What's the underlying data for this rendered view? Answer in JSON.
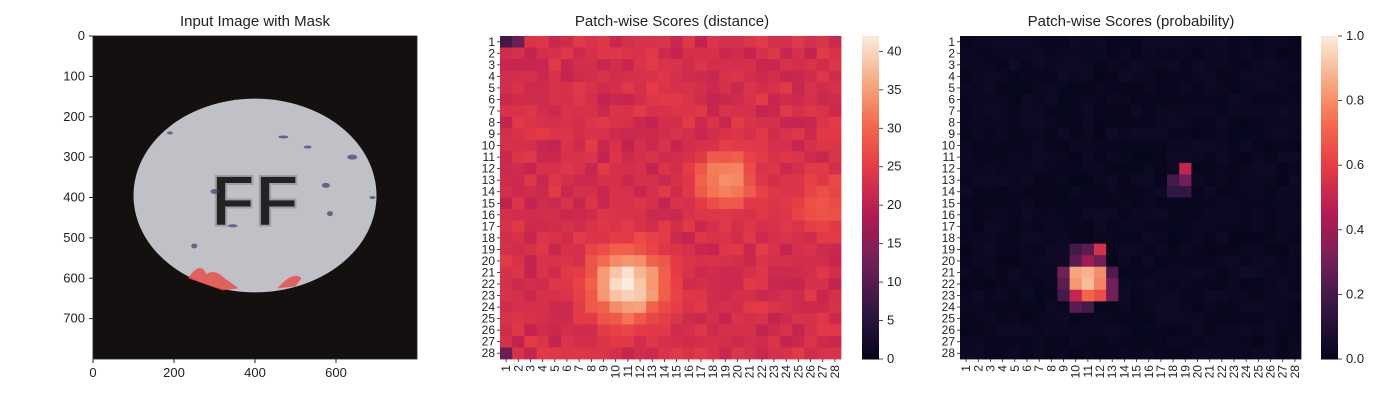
{
  "chart_data": [
    {
      "type": "image",
      "title": "Input Image with Mask",
      "xlim": [
        0,
        800
      ],
      "ylim": [
        800,
        0
      ],
      "xticks": [
        0,
        200,
        400,
        600
      ],
      "yticks": [
        0,
        100,
        200,
        300,
        400,
        500,
        600,
        700
      ],
      "image": {
        "background": "#151010",
        "object": "pill",
        "embossed_text": "FF",
        "object_color": "#bfc1c6",
        "mask_color": "#e8504a",
        "mask_regions_center_x": [
          265,
          310,
          405,
          460,
          510
        ]
      }
    },
    {
      "type": "heatmap",
      "title": "Patch-wise Scores (distance)",
      "rows": [
        "1",
        "2",
        "3",
        "4",
        "5",
        "6",
        "7",
        "8",
        "9",
        "10",
        "11",
        "12",
        "13",
        "14",
        "15",
        "16",
        "17",
        "18",
        "19",
        "20",
        "21",
        "22",
        "23",
        "24",
        "25",
        "26",
        "27",
        "28"
      ],
      "cols": [
        "1",
        "2",
        "3",
        "4",
        "5",
        "6",
        "7",
        "8",
        "9",
        "10",
        "11",
        "12",
        "13",
        "14",
        "15",
        "16",
        "17",
        "18",
        "19",
        "20",
        "21",
        "22",
        "23",
        "24",
        "25",
        "26",
        "27",
        "28"
      ],
      "colormap": "rocket",
      "vmin": 0,
      "vmax": 42,
      "colorbar_ticks": [
        0,
        5,
        10,
        15,
        20,
        25,
        30,
        35,
        40
      ],
      "baseline": 22,
      "hotspots": [
        {
          "row": 22,
          "col": 11,
          "peak": 42,
          "spread": 2.2
        },
        {
          "row": 13,
          "col": 19,
          "peak": 35,
          "spread": 1.8
        },
        {
          "row": 15,
          "col": 27,
          "peak": 28,
          "spread": 2.0
        }
      ],
      "low_cells": [
        {
          "row": 1,
          "col": 1,
          "value": 8
        },
        {
          "row": 1,
          "col": 2,
          "value": 12
        },
        {
          "row": 28,
          "col": 1,
          "value": 12
        }
      ]
    },
    {
      "type": "heatmap",
      "title": "Patch-wise Scores (probability)",
      "rows": [
        "1",
        "2",
        "3",
        "4",
        "5",
        "6",
        "7",
        "8",
        "9",
        "10",
        "11",
        "12",
        "13",
        "14",
        "15",
        "16",
        "17",
        "18",
        "19",
        "20",
        "21",
        "22",
        "23",
        "24",
        "25",
        "26",
        "27",
        "28"
      ],
      "cols": [
        "1",
        "2",
        "3",
        "4",
        "5",
        "6",
        "7",
        "8",
        "9",
        "10",
        "11",
        "12",
        "13",
        "14",
        "15",
        "16",
        "17",
        "18",
        "19",
        "20",
        "21",
        "22",
        "23",
        "24",
        "25",
        "26",
        "27",
        "28"
      ],
      "colormap": "rocket",
      "vmin": 0.0,
      "vmax": 1.0,
      "colorbar_ticks": [
        0.0,
        0.2,
        0.4,
        0.6,
        0.8,
        1.0
      ],
      "colorbar_tick_labels": [
        "0.0",
        "0.2",
        "0.4",
        "0.6",
        "0.8",
        "1.0"
      ],
      "cells": [
        {
          "row": 21,
          "col": 10,
          "value": 0.85
        },
        {
          "row": 21,
          "col": 11,
          "value": 0.88
        },
        {
          "row": 21,
          "col": 12,
          "value": 0.8
        },
        {
          "row": 22,
          "col": 10,
          "value": 0.82
        },
        {
          "row": 22,
          "col": 11,
          "value": 0.9
        },
        {
          "row": 22,
          "col": 12,
          "value": 0.78
        },
        {
          "row": 23,
          "col": 10,
          "value": 0.5
        },
        {
          "row": 23,
          "col": 11,
          "value": 0.72
        },
        {
          "row": 23,
          "col": 12,
          "value": 0.65
        },
        {
          "row": 19,
          "col": 12,
          "value": 0.55
        },
        {
          "row": 20,
          "col": 11,
          "value": 0.4
        },
        {
          "row": 20,
          "col": 12,
          "value": 0.3
        },
        {
          "row": 19,
          "col": 11,
          "value": 0.25
        },
        {
          "row": 19,
          "col": 10,
          "value": 0.2
        },
        {
          "row": 20,
          "col": 10,
          "value": 0.25
        },
        {
          "row": 21,
          "col": 9,
          "value": 0.3
        },
        {
          "row": 22,
          "col": 9,
          "value": 0.25
        },
        {
          "row": 23,
          "col": 9,
          "value": 0.2
        },
        {
          "row": 24,
          "col": 10,
          "value": 0.25
        },
        {
          "row": 24,
          "col": 11,
          "value": 0.2
        },
        {
          "row": 22,
          "col": 13,
          "value": 0.3
        },
        {
          "row": 23,
          "col": 13,
          "value": 0.3
        },
        {
          "row": 21,
          "col": 13,
          "value": 0.22
        },
        {
          "row": 12,
          "col": 19,
          "value": 0.5
        },
        {
          "row": 13,
          "col": 19,
          "value": 0.3
        },
        {
          "row": 13,
          "col": 18,
          "value": 0.2
        },
        {
          "row": 14,
          "col": 18,
          "value": 0.15
        },
        {
          "row": 14,
          "col": 19,
          "value": 0.15
        }
      ]
    }
  ]
}
